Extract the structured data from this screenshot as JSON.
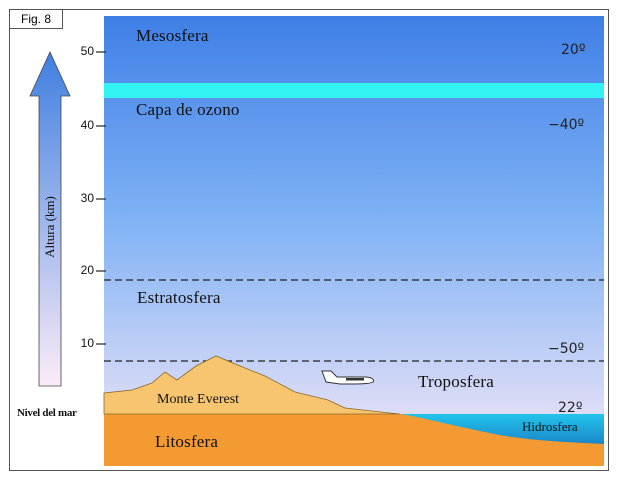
{
  "figure_label": "Fig. 8",
  "axis": {
    "label": "Altura (km)",
    "baseline_label": "Nivel del mar",
    "ticks": [
      "50",
      "40",
      "30",
      "20",
      "10"
    ]
  },
  "layers": {
    "mesosfera": "Mesosfera",
    "ozono": "Capa de ozono",
    "estratosfera": "Estratosfera",
    "troposfera": "Troposfera",
    "litosfera": "Litosfera",
    "hidrosfera": "Hidrosfera"
  },
  "landmarks": {
    "everest": "Monte Everest"
  },
  "temperatures": [
    "20º",
    "−40º",
    "−50º",
    "22º"
  ],
  "colors": {
    "sky_top": "#3f7fe6",
    "sky_bottom": "#f4e6f4",
    "ozone": "#33f0f0",
    "mountain": "#f7c56f",
    "litosfera": "#f39a33",
    "hidrosfera": "#1fb6e0",
    "arrow_top": "#4a88e0",
    "arrow_bottom": "#fbeaf6"
  }
}
